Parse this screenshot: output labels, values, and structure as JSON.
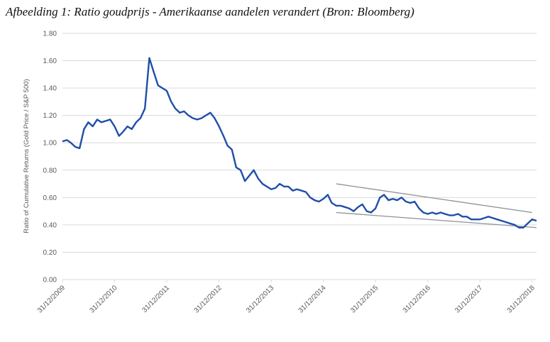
{
  "chart_data": {
    "type": "line",
    "title": "Afbeelding 1: Ratio goudprijs - Amerikaanse aandelen verandert (Bron: Bloomberg)",
    "y_label": "Ratio of Cumulative Returns (Gold Price / S&P 500)",
    "xlim": [
      "2009-12-31",
      "2019-01-31"
    ],
    "ylim": [
      0,
      1.8
    ],
    "yticks": [
      {
        "value": 0,
        "label": "0.00"
      },
      {
        "value": 0.2,
        "label": "0.20"
      },
      {
        "value": 0.4,
        "label": "0.40"
      },
      {
        "value": 0.6,
        "label": "0.60"
      },
      {
        "value": 0.8,
        "label": "0.80"
      },
      {
        "value": 1,
        "label": "1.00"
      },
      {
        "value": 1.2,
        "label": "1.20"
      },
      {
        "value": 1.4,
        "label": "1.40"
      },
      {
        "value": 1.6,
        "label": "1.60"
      },
      {
        "value": 1.8,
        "label": "1.80"
      }
    ],
    "xticks": [
      {
        "value": "2009-12-31",
        "label": "31/12/2009"
      },
      {
        "value": "2010-12-31",
        "label": "31/12/2010"
      },
      {
        "value": "2011-12-31",
        "label": "31/12/2011"
      },
      {
        "value": "2012-12-31",
        "label": "31/12/2012"
      },
      {
        "value": "2013-12-31",
        "label": "31/12/2013"
      },
      {
        "value": "2014-12-31",
        "label": "31/12/2014"
      },
      {
        "value": "2015-12-31",
        "label": "31/12/2015"
      },
      {
        "value": "2016-12-31",
        "label": "31/12/2016"
      },
      {
        "value": "2017-12-31",
        "label": "31/12/2017"
      },
      {
        "value": "2018-12-31",
        "label": "31/12/2018"
      }
    ],
    "grid": true,
    "x": [
      "2009-12-31",
      "2010-01-31",
      "2010-02-28",
      "2010-03-31",
      "2010-04-30",
      "2010-05-31",
      "2010-06-30",
      "2010-07-31",
      "2010-08-31",
      "2010-09-30",
      "2010-10-31",
      "2010-11-30",
      "2010-12-31",
      "2011-01-31",
      "2011-02-28",
      "2011-03-31",
      "2011-04-30",
      "2011-05-31",
      "2011-06-30",
      "2011-07-31",
      "2011-08-31",
      "2011-09-30",
      "2011-10-31",
      "2011-11-30",
      "2011-12-31",
      "2012-01-31",
      "2012-02-29",
      "2012-03-31",
      "2012-04-30",
      "2012-05-31",
      "2012-06-30",
      "2012-07-31",
      "2012-08-31",
      "2012-09-30",
      "2012-10-31",
      "2012-11-30",
      "2012-12-31",
      "2013-01-31",
      "2013-02-28",
      "2013-03-31",
      "2013-04-30",
      "2013-05-31",
      "2013-06-30",
      "2013-07-31",
      "2013-08-31",
      "2013-09-30",
      "2013-10-31",
      "2013-11-30",
      "2013-12-31",
      "2014-01-31",
      "2014-02-28",
      "2014-03-31",
      "2014-04-30",
      "2014-05-31",
      "2014-06-30",
      "2014-07-31",
      "2014-08-31",
      "2014-09-30",
      "2014-10-31",
      "2014-11-30",
      "2014-12-31",
      "2015-01-31",
      "2015-02-28",
      "2015-03-31",
      "2015-04-30",
      "2015-05-31",
      "2015-06-30",
      "2015-07-31",
      "2015-08-31",
      "2015-09-30",
      "2015-10-31",
      "2015-11-30",
      "2015-12-31",
      "2016-01-31",
      "2016-02-29",
      "2016-03-31",
      "2016-04-30",
      "2016-05-31",
      "2016-06-30",
      "2016-07-31",
      "2016-08-31",
      "2016-09-30",
      "2016-10-31",
      "2016-11-30",
      "2016-12-31",
      "2017-01-31",
      "2017-02-28",
      "2017-03-31",
      "2017-04-30",
      "2017-05-31",
      "2017-06-30",
      "2017-07-31",
      "2017-08-31",
      "2017-09-30",
      "2017-10-31",
      "2017-11-30",
      "2017-12-31",
      "2018-01-31",
      "2018-02-28",
      "2018-03-31",
      "2018-04-30",
      "2018-05-31",
      "2018-06-30",
      "2018-07-31",
      "2018-08-31",
      "2018-09-30",
      "2018-10-31",
      "2018-11-30",
      "2018-12-31",
      "2019-01-31"
    ],
    "series": [
      {
        "color": "#1f4eaa",
        "values": [
          1.01,
          1.02,
          1.0,
          0.97,
          0.96,
          1.1,
          1.15,
          1.12,
          1.17,
          1.15,
          1.16,
          1.17,
          1.12,
          1.05,
          1.08,
          1.12,
          1.1,
          1.15,
          1.18,
          1.25,
          1.62,
          1.52,
          1.42,
          1.4,
          1.38,
          1.3,
          1.25,
          1.22,
          1.23,
          1.2,
          1.18,
          1.17,
          1.18,
          1.2,
          1.22,
          1.18,
          1.12,
          1.05,
          0.98,
          0.95,
          0.82,
          0.8,
          0.72,
          0.76,
          0.8,
          0.74,
          0.7,
          0.68,
          0.66,
          0.67,
          0.7,
          0.68,
          0.68,
          0.65,
          0.66,
          0.65,
          0.64,
          0.6,
          0.58,
          0.57,
          0.59,
          0.62,
          0.56,
          0.54,
          0.54,
          0.53,
          0.52,
          0.5,
          0.53,
          0.55,
          0.5,
          0.49,
          0.52,
          0.6,
          0.62,
          0.58,
          0.59,
          0.58,
          0.6,
          0.57,
          0.56,
          0.57,
          0.52,
          0.49,
          0.48,
          0.49,
          0.48,
          0.49,
          0.48,
          0.47,
          0.47,
          0.48,
          0.46,
          0.46,
          0.44,
          0.44,
          0.44,
          0.45,
          0.46,
          0.45,
          0.44,
          0.43,
          0.42,
          0.41,
          0.4,
          0.38,
          0.38,
          0.41,
          0.44,
          0.43
        ]
      }
    ],
    "trend_lines": [
      {
        "color": "#8c9299",
        "x": [
          "2015-03-31",
          "2018-12-31"
        ],
        "values": [
          0.7,
          0.49
        ]
      },
      {
        "color": "#8c9299",
        "x": [
          "2015-03-31",
          "2019-01-31"
        ],
        "values": [
          0.49,
          0.38
        ]
      }
    ]
  }
}
